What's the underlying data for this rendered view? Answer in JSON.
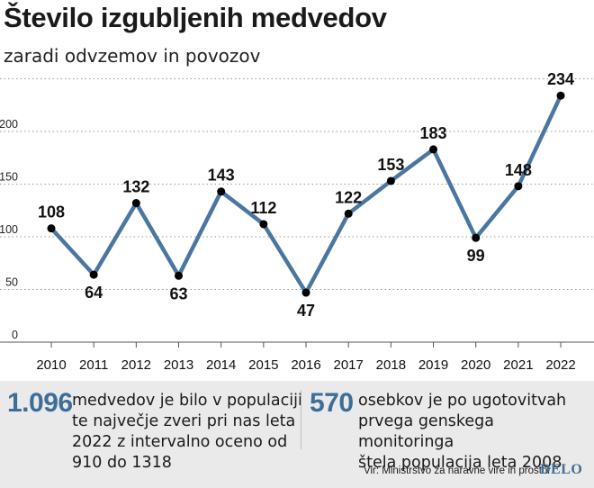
{
  "title": "Število izgubljenih medvedov",
  "subtitle": "zaradi odvzemov in povozov",
  "chart_data": {
    "type": "line",
    "title": "Število izgubljenih medvedov",
    "subtitle": "zaradi odvzemov in povozov",
    "x": [
      "2010",
      "2011",
      "2012",
      "2013",
      "2014",
      "2015",
      "2016",
      "2017",
      "2018",
      "2019",
      "2020",
      "2021",
      "2022"
    ],
    "values": [
      108,
      64,
      132,
      63,
      143,
      112,
      47,
      122,
      153,
      183,
      99,
      148,
      234
    ],
    "y_ticks": [
      0,
      50,
      100,
      150,
      200
    ],
    "ylim": [
      0,
      250
    ],
    "xlabel": "",
    "ylabel": "",
    "label_positions": [
      "above",
      "below",
      "above",
      "below",
      "above",
      "above",
      "below",
      "above",
      "above",
      "above",
      "below",
      "above",
      "above"
    ],
    "line_color": "#4a76a0",
    "marker_color": "#000000",
    "grid": true
  },
  "footer": {
    "stat1_number": "1.096",
    "stat1_lines": [
      "medvedov je bilo v populaciji",
      "te največje zveri pri nas leta",
      "2022 z intervalno oceno od",
      "910 do 1318"
    ],
    "stat2_number": "570",
    "stat2_lines": [
      "osebkov je po ugotovitvah",
      "prvega genskega monitoringa",
      "štela populacija leta 2008"
    ],
    "source": "Vir: Ministrstvo za naravne vire in prostor",
    "brand": "DELO"
  },
  "colors": {
    "accent": "#3c6e97",
    "footer_bg": "#eaeaea"
  }
}
